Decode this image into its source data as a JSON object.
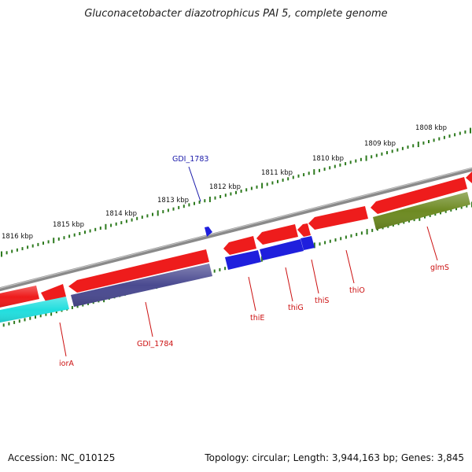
{
  "title": "Gluconacetobacter diazotrophicus PAI 5, complete genome",
  "footer": {
    "accession": "Accession: NC_010125",
    "summary": "Topology: circular; Length: 3,944,163 bp; Genes: 3,845"
  },
  "colors": {
    "backbone": "#8a8a8a",
    "tick": "#2d7a1e",
    "label_forward": "#1a1aaa",
    "label_reverse": "#cc1111",
    "red": "#ee1c1c",
    "blue": "#1f1fdd",
    "navy": "#4a4a90",
    "cyan": "#22dede",
    "olive": "#6d8a22"
  },
  "scale_labels": [
    "1816 kbp",
    "1815 kbp",
    "1814 kbp",
    "1813 kbp",
    "1812 kbp",
    "1811 kbp",
    "1810 kbp",
    "1809 kbp",
    "1808 kbp"
  ],
  "gene_labels": [
    {
      "id": "gdi1783",
      "text": "GDI_1783",
      "strand": "forward"
    },
    {
      "id": "iora",
      "text": "iorA",
      "strand": "reverse"
    },
    {
      "id": "gdi1784",
      "text": "GDI_1784",
      "strand": "reverse"
    },
    {
      "id": "thie",
      "text": "thiE",
      "strand": "reverse"
    },
    {
      "id": "thig",
      "text": "thiG",
      "strand": "reverse"
    },
    {
      "id": "this",
      "text": "thiS",
      "strand": "reverse"
    },
    {
      "id": "thio",
      "text": "thiO",
      "strand": "reverse"
    },
    {
      "id": "glms",
      "text": "glmS",
      "strand": "reverse"
    }
  ]
}
